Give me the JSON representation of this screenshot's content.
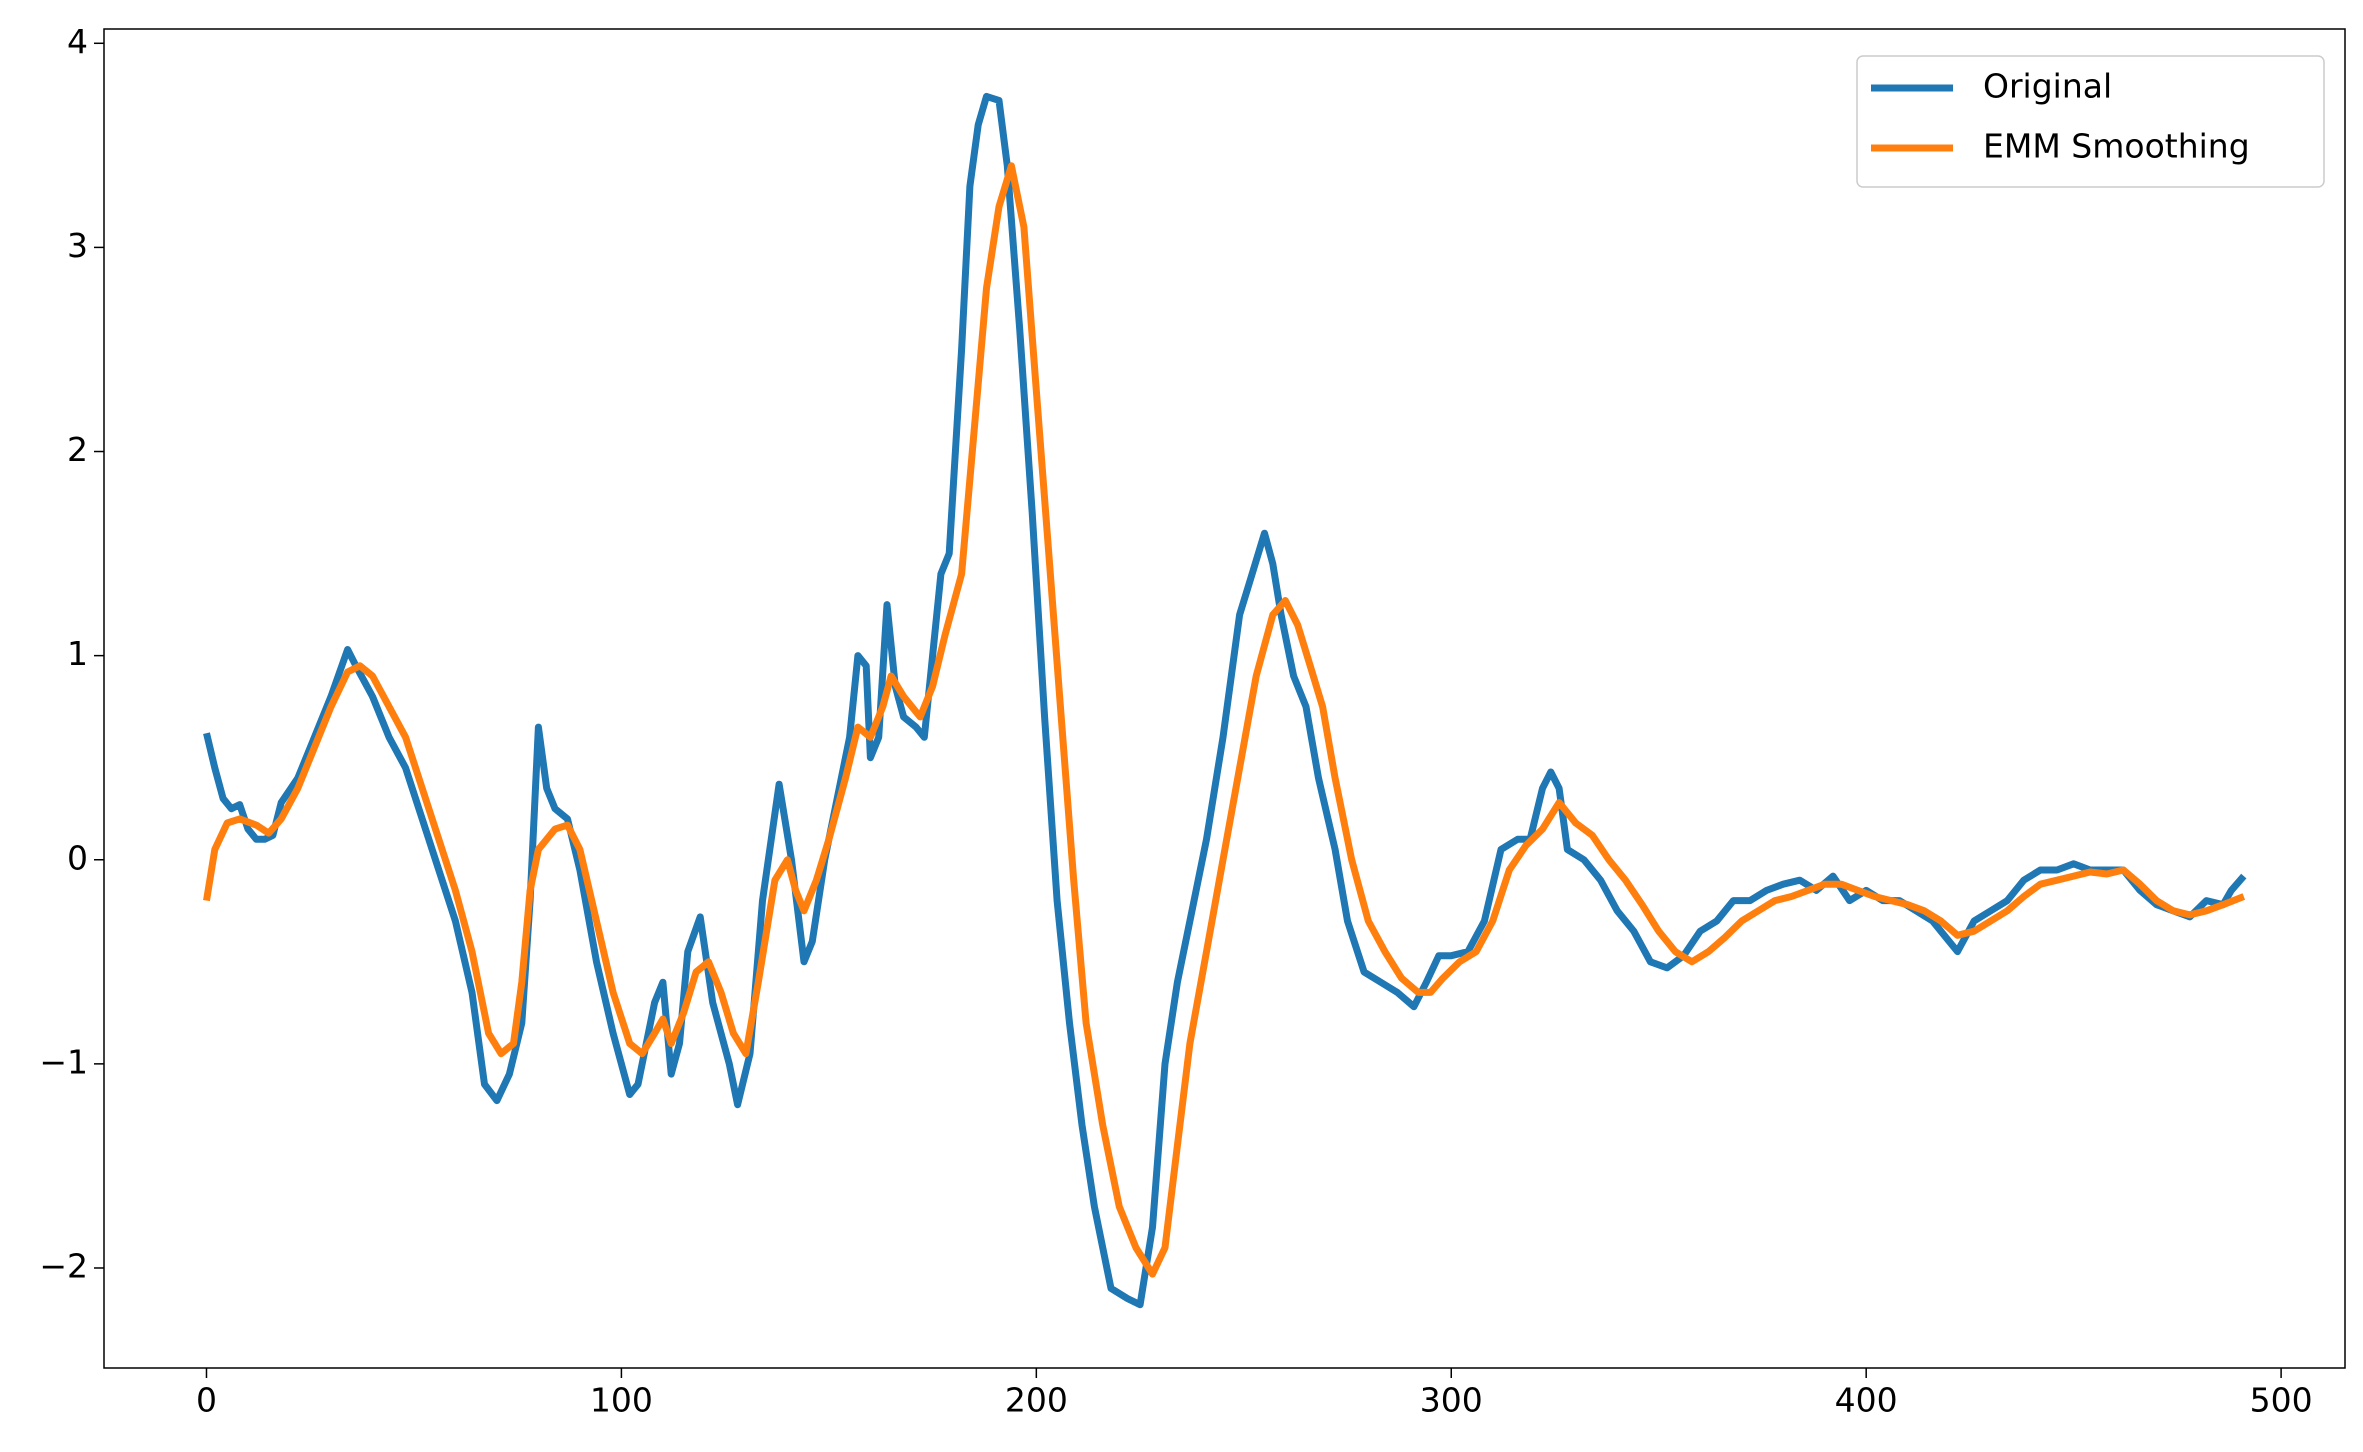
{
  "chart_data": {
    "type": "line",
    "legend": "upper right",
    "grid": false,
    "xlim": [
      -24.7,
      515.4
    ],
    "ylim": [
      -2.49,
      4.07
    ],
    "xticks": [
      0,
      100,
      200,
      300,
      400,
      500
    ],
    "yticks": [
      {
        "value": -2,
        "label": "−2"
      },
      {
        "value": -1,
        "label": "−1"
      },
      0,
      1,
      2,
      3,
      4
    ],
    "series": [
      {
        "name": "Original",
        "color": "#1f77b4",
        "x": [
          0,
          2,
          4,
          6,
          8,
          10,
          12,
          14,
          16,
          18,
          22,
          26,
          30,
          34,
          36,
          40,
          44,
          48,
          52,
          56,
          60,
          64,
          67,
          70,
          73,
          76,
          78,
          80,
          82,
          84,
          87,
          90,
          94,
          98,
          102,
          104,
          106,
          108,
          110,
          112,
          114,
          116,
          119,
          122,
          126,
          128,
          131,
          134,
          138,
          141,
          144,
          146,
          149,
          152,
          155,
          157,
          159,
          160,
          162,
          164,
          166,
          168,
          171,
          173,
          175,
          177,
          179,
          182,
          184,
          186,
          188,
          191,
          193,
          196,
          199,
          202,
          205,
          208,
          211,
          214,
          218,
          222,
          225,
          228,
          231,
          234,
          237,
          241,
          245,
          249,
          252,
          255,
          257,
          259,
          262,
          265,
          268,
          272,
          275,
          279,
          283,
          287,
          291,
          294,
          297,
          300,
          304,
          308,
          312,
          316,
          319,
          322,
          324,
          326,
          328,
          332,
          336,
          340,
          344,
          348,
          352,
          356,
          360,
          364,
          368,
          372,
          376,
          380,
          384,
          388,
          392,
          396,
          400,
          404,
          408,
          412,
          416,
          420,
          422,
          426,
          430,
          434,
          438,
          442,
          446,
          450,
          454,
          458,
          462,
          466,
          470,
          474,
          478,
          482,
          486,
          488,
          491
        ],
        "values": [
          0.62,
          0.45,
          0.3,
          0.25,
          0.27,
          0.15,
          0.1,
          0.1,
          0.12,
          0.28,
          0.4,
          0.6,
          0.8,
          1.03,
          0.95,
          0.8,
          0.6,
          0.45,
          0.2,
          -0.05,
          -0.3,
          -0.65,
          -1.1,
          -1.18,
          -1.05,
          -0.8,
          -0.2,
          0.65,
          0.35,
          0.25,
          0.2,
          -0.05,
          -0.5,
          -0.85,
          -1.15,
          -1.1,
          -0.9,
          -0.7,
          -0.6,
          -1.05,
          -0.9,
          -0.45,
          -0.28,
          -0.7,
          -1.0,
          -1.2,
          -0.95,
          -0.2,
          0.37,
          0.0,
          -0.5,
          -0.4,
          0.0,
          0.3,
          0.6,
          1.0,
          0.95,
          0.5,
          0.6,
          1.25,
          0.85,
          0.7,
          0.65,
          0.6,
          1.0,
          1.4,
          1.5,
          2.5,
          3.3,
          3.6,
          3.74,
          3.72,
          3.4,
          2.6,
          1.7,
          0.7,
          -0.2,
          -0.8,
          -1.3,
          -1.7,
          -2.1,
          -2.15,
          -2.18,
          -1.8,
          -1.0,
          -0.6,
          -0.3,
          0.1,
          0.6,
          1.2,
          1.4,
          1.6,
          1.45,
          1.2,
          0.9,
          0.75,
          0.4,
          0.05,
          -0.3,
          -0.55,
          -0.6,
          -0.65,
          -0.72,
          -0.6,
          -0.47,
          -0.47,
          -0.45,
          -0.3,
          0.05,
          0.1,
          0.1,
          0.35,
          0.43,
          0.35,
          0.05,
          0.0,
          -0.1,
          -0.25,
          -0.35,
          -0.5,
          -0.53,
          -0.47,
          -0.35,
          -0.3,
          -0.2,
          -0.2,
          -0.15,
          -0.12,
          -0.1,
          -0.15,
          -0.08,
          -0.2,
          -0.15,
          -0.2,
          -0.2,
          -0.25,
          -0.3,
          -0.4,
          -0.45,
          -0.3,
          -0.25,
          -0.2,
          -0.1,
          -0.05,
          -0.05,
          -0.02,
          -0.05,
          -0.05,
          -0.05,
          -0.15,
          -0.22,
          -0.25,
          -0.28,
          -0.2,
          -0.22,
          -0.15,
          -0.08
        ]
      },
      {
        "name": "EMM Smoothing",
        "color": "#ff7f0e",
        "x": [
          0,
          2,
          5,
          8,
          12,
          15,
          18,
          22,
          26,
          30,
          34,
          37,
          40,
          44,
          48,
          52,
          56,
          60,
          64,
          68,
          71,
          74,
          76,
          78,
          80,
          84,
          87,
          90,
          94,
          98,
          102,
          105,
          108,
          110,
          112,
          115,
          118,
          121,
          124,
          127,
          130,
          133,
          137,
          140,
          142,
          144,
          147,
          150,
          154,
          157,
          160,
          163,
          165,
          168,
          172,
          175,
          178,
          182,
          185,
          188,
          191,
          194,
          197,
          200,
          203,
          206,
          209,
          212,
          216,
          220,
          224,
          228,
          231,
          234,
          237,
          241,
          245,
          249,
          253,
          257,
          260,
          263,
          266,
          269,
          272,
          276,
          280,
          284,
          288,
          292,
          295,
          298,
          302,
          306,
          310,
          314,
          318,
          322,
          326,
          330,
          334,
          338,
          342,
          346,
          350,
          354,
          358,
          362,
          366,
          370,
          374,
          378,
          382,
          386,
          390,
          394,
          398,
          402,
          406,
          410,
          414,
          418,
          422,
          426,
          430,
          434,
          438,
          442,
          446,
          450,
          454,
          458,
          462,
          466,
          470,
          474,
          478,
          482,
          486,
          491
        ],
        "values": [
          -0.2,
          0.05,
          0.18,
          0.2,
          0.17,
          0.13,
          0.2,
          0.35,
          0.55,
          0.75,
          0.92,
          0.95,
          0.9,
          0.75,
          0.6,
          0.35,
          0.1,
          -0.15,
          -0.45,
          -0.85,
          -0.95,
          -0.9,
          -0.6,
          -0.15,
          0.05,
          0.15,
          0.17,
          0.05,
          -0.3,
          -0.65,
          -0.9,
          -0.95,
          -0.85,
          -0.78,
          -0.9,
          -0.75,
          -0.55,
          -0.5,
          -0.65,
          -0.85,
          -0.95,
          -0.6,
          -0.1,
          0.0,
          -0.15,
          -0.25,
          -0.1,
          0.1,
          0.4,
          0.65,
          0.6,
          0.75,
          0.9,
          0.8,
          0.7,
          0.85,
          1.1,
          1.4,
          2.1,
          2.8,
          3.2,
          3.4,
          3.1,
          2.3,
          1.5,
          0.7,
          -0.1,
          -0.8,
          -1.3,
          -1.7,
          -1.9,
          -2.03,
          -1.9,
          -1.4,
          -0.9,
          -0.45,
          0.0,
          0.45,
          0.9,
          1.2,
          1.27,
          1.15,
          0.95,
          0.75,
          0.4,
          0.0,
          -0.3,
          -0.45,
          -0.58,
          -0.65,
          -0.65,
          -0.58,
          -0.5,
          -0.45,
          -0.3,
          -0.05,
          0.07,
          0.15,
          0.28,
          0.18,
          0.12,
          0.0,
          -0.1,
          -0.22,
          -0.35,
          -0.45,
          -0.5,
          -0.45,
          -0.38,
          -0.3,
          -0.25,
          -0.2,
          -0.18,
          -0.15,
          -0.12,
          -0.12,
          -0.15,
          -0.18,
          -0.2,
          -0.22,
          -0.25,
          -0.3,
          -0.37,
          -0.35,
          -0.3,
          -0.25,
          -0.18,
          -0.12,
          -0.1,
          -0.08,
          -0.06,
          -0.07,
          -0.05,
          -0.12,
          -0.2,
          -0.25,
          -0.27,
          -0.25,
          -0.22,
          -0.18
        ]
      }
    ]
  }
}
